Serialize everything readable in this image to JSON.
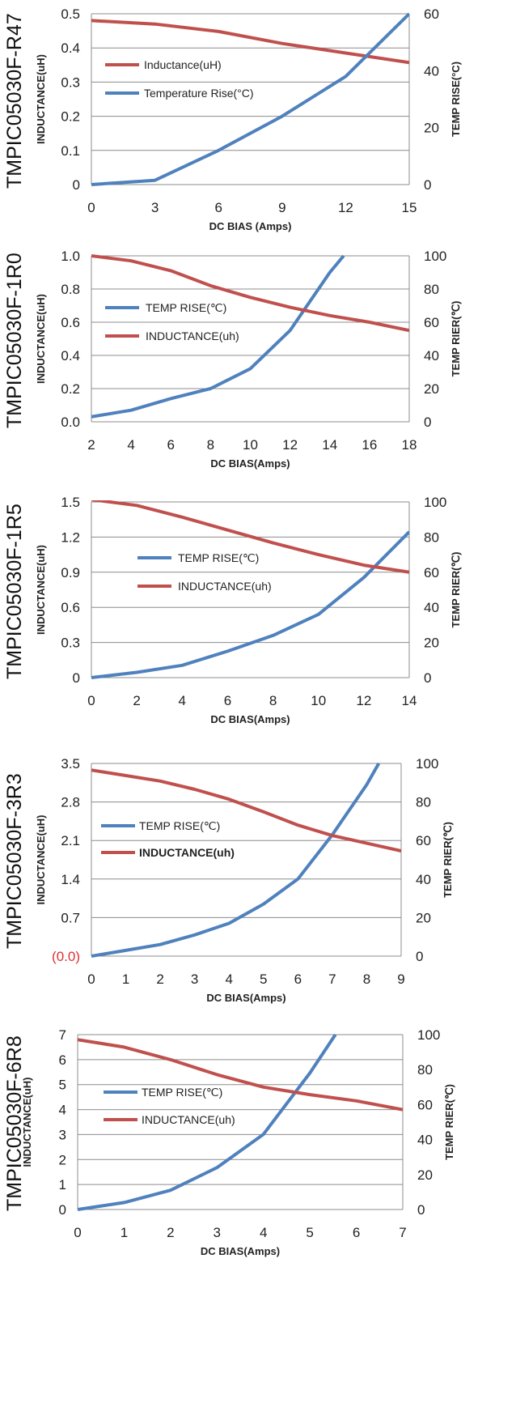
{
  "chart_data": [
    {
      "type": "line",
      "part_number": "TMPIC05030F-R47",
      "xlabel": "DC BIAS (Amps)",
      "ylabel": "INDUCTANCE(uH)",
      "y2label": "TEMP RISE(°C)",
      "x_ticks": [
        "0",
        "3",
        "6",
        "9",
        "12",
        "15"
      ],
      "y_ticks": [
        "0",
        "0.1",
        "0.2",
        "0.3",
        "0.4",
        "0.5"
      ],
      "y2_ticks": [
        "0",
        "20",
        "40",
        "60"
      ],
      "xlim": [
        0,
        15
      ],
      "ylim": [
        0,
        0.5
      ],
      "y2lim": [
        0,
        60
      ],
      "grid": "horizontal",
      "legend_position": "upper-left",
      "series": [
        {
          "name": "Inductance(uH)",
          "axis": "left",
          "color": "#c0504d",
          "x": [
            0,
            3,
            6,
            9,
            12,
            15
          ],
          "y": [
            0.48,
            0.47,
            0.448,
            0.413,
            0.385,
            0.357
          ]
        },
        {
          "name": "Temperature Rise(°C)",
          "axis": "right",
          "color": "#4f81bd",
          "x": [
            0,
            3,
            6,
            9,
            12,
            15
          ],
          "y": [
            0,
            1.5,
            12,
            24,
            38,
            60
          ]
        }
      ]
    },
    {
      "type": "line",
      "part_number": "TMPIC05030F-1R0",
      "xlabel": "DC  BIAS(Amps)",
      "ylabel": "INDUCTANCE(uH)",
      "y2label": "TEMP RIER(℃)",
      "x_ticks": [
        "2",
        "4",
        "6",
        "8",
        "10",
        "12",
        "14",
        "16",
        "18"
      ],
      "y_ticks": [
        "0.0",
        "0.2",
        "0.4",
        "0.6",
        "0.8",
        "1.0"
      ],
      "y2_ticks": [
        "0",
        "20",
        "40",
        "60",
        "80",
        "100"
      ],
      "xlim": [
        2,
        18
      ],
      "ylim": [
        0,
        1.0
      ],
      "y2lim": [
        0,
        100
      ],
      "grid": "horizontal",
      "legend_position": "center-left",
      "series": [
        {
          "name": "TEMP RISE(℃)",
          "axis": "right",
          "color": "#4f81bd",
          "x": [
            2,
            4,
            6,
            8,
            10,
            12,
            14,
            14.7
          ],
          "y": [
            3,
            7,
            14,
            20,
            32,
            55,
            90,
            100
          ]
        },
        {
          "name": "INDUCTANCE(uh)",
          "axis": "left",
          "color": "#c0504d",
          "x": [
            2,
            4,
            6,
            8,
            10,
            12,
            14,
            16,
            18
          ],
          "y": [
            1.0,
            0.97,
            0.91,
            0.82,
            0.75,
            0.69,
            0.64,
            0.6,
            0.55
          ]
        }
      ]
    },
    {
      "type": "line",
      "part_number": "TMPIC05030F-1R5",
      "xlabel": "DC  BIAS(Amps)",
      "ylabel": "INDUCTANCE(uH)",
      "y2label": "TEMP RIER(℃)",
      "x_ticks": [
        "0",
        "2",
        "4",
        "6",
        "8",
        "10",
        "12",
        "14"
      ],
      "y_ticks": [
        "0",
        "0.3",
        "0.6",
        "0.9",
        "1.2",
        "1.5"
      ],
      "y2_ticks": [
        "0",
        "20",
        "40",
        "60",
        "80",
        "100"
      ],
      "xlim": [
        0,
        14
      ],
      "ylim": [
        0,
        1.5
      ],
      "y2lim": [
        0,
        100
      ],
      "grid": "horizontal",
      "legend_position": "center-left",
      "series": [
        {
          "name": "TEMP RISE(℃)",
          "axis": "right",
          "color": "#4f81bd",
          "x": [
            0,
            2,
            4,
            6,
            8,
            10,
            12,
            14
          ],
          "y": [
            0,
            3,
            7,
            15,
            24,
            36,
            57,
            83
          ]
        },
        {
          "name": "INDUCTANCE(uh)",
          "axis": "left",
          "color": "#c0504d",
          "x": [
            0,
            2,
            4,
            6,
            8,
            10,
            12,
            14
          ],
          "y": [
            1.52,
            1.47,
            1.37,
            1.26,
            1.15,
            1.05,
            0.96,
            0.9
          ]
        }
      ]
    },
    {
      "type": "line",
      "part_number": "TMPIC05030F-3R3",
      "xlabel": "DC  BIAS(Amps)",
      "ylabel": "INDUCTANCE(uH)",
      "y2label": "TEMP RIER(℃)",
      "x_ticks": [
        "0",
        "1",
        "2",
        "3",
        "4",
        "5",
        "6",
        "7",
        "8",
        "9"
      ],
      "y_ticks": [
        "(0.0)",
        "0.7",
        "1.4",
        "2.1",
        "2.8",
        "3.5"
      ],
      "y2_ticks": [
        "0",
        "20",
        "40",
        "60",
        "80",
        "100"
      ],
      "xlim": [
        0,
        9
      ],
      "ylim": [
        0,
        3.5
      ],
      "y2lim": [
        0,
        100
      ],
      "grid": "horizontal",
      "legend_position": "center-left",
      "series": [
        {
          "name": "TEMP RISE(℃)",
          "axis": "right",
          "color": "#4f81bd",
          "x": [
            0,
            1,
            2,
            3,
            4,
            5,
            6,
            7,
            8,
            8.35
          ],
          "y": [
            0,
            3,
            6,
            11,
            17,
            27,
            40,
            63,
            89,
            100
          ]
        },
        {
          "name": "INDUCTANCE(uh)",
          "axis": "left",
          "color": "#c0504d",
          "x": [
            0,
            1,
            2,
            3,
            4,
            5,
            6,
            7,
            8,
            9
          ],
          "y": [
            3.38,
            3.28,
            3.18,
            3.03,
            2.85,
            2.62,
            2.38,
            2.19,
            2.05,
            1.91
          ]
        }
      ]
    },
    {
      "type": "line",
      "part_number": "TMPIC05030F-6R8",
      "xlabel": "DC  BIAS(Amps)",
      "ylabel": "INDUCTANCE(uH)",
      "y2label": "TEMP RIER(℃)",
      "x_ticks": [
        "0",
        "1",
        "2",
        "3",
        "4",
        "5",
        "6",
        "7"
      ],
      "y_ticks": [
        "0",
        "1",
        "2",
        "3",
        "4",
        "5",
        "6",
        "7"
      ],
      "y2_ticks": [
        "0",
        "20",
        "40",
        "60",
        "80",
        "100"
      ],
      "xlim": [
        0,
        7
      ],
      "ylim": [
        0,
        7
      ],
      "y2lim": [
        0,
        100
      ],
      "grid": "horizontal",
      "legend_position": "center-left",
      "series": [
        {
          "name": "TEMP RISE(℃)",
          "axis": "right",
          "color": "#4f81bd",
          "x": [
            0,
            1,
            2,
            3,
            4,
            5,
            5.55
          ],
          "y": [
            0,
            4,
            11,
            24,
            43,
            78,
            100
          ]
        },
        {
          "name": "INDUCTANCE(uh)",
          "axis": "left",
          "color": "#c0504d",
          "x": [
            0,
            1,
            2,
            3,
            4,
            5,
            6,
            7
          ],
          "y": [
            6.8,
            6.5,
            6.0,
            5.4,
            4.9,
            4.6,
            4.35,
            4.0
          ]
        }
      ]
    }
  ]
}
